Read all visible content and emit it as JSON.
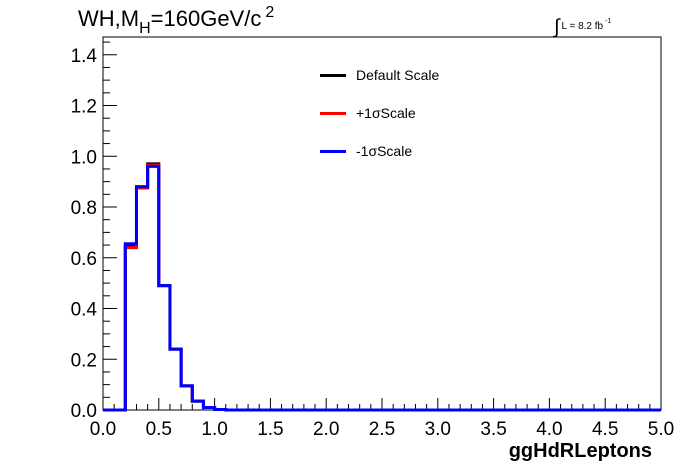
{
  "title": {
    "prefix": "WH,M",
    "subscript": "H",
    "main": "=160GeV/c",
    "superscript": "2"
  },
  "luminosity": {
    "integral": "∫",
    "text": "L = 8.2 fb",
    "superscript": "-1"
  },
  "chart_data": {
    "type": "line",
    "style": "step-histogram",
    "xlabel": "ggHdRLeptons",
    "ylabel": "",
    "xlim": [
      0.0,
      5.0
    ],
    "ylim": [
      0.0,
      1.47
    ],
    "grid": false,
    "legend_position": "top-center",
    "x_ticks": [
      "0.0",
      "0.5",
      "1.0",
      "1.5",
      "2.0",
      "2.5",
      "3.0",
      "3.5",
      "4.0",
      "4.5",
      "5.0"
    ],
    "y_ticks": [
      "0.0",
      "0.2",
      "0.4",
      "0.6",
      "0.8",
      "1.0",
      "1.2",
      "1.4"
    ],
    "bin_edges": [
      0.0,
      0.1,
      0.2,
      0.3,
      0.4,
      0.5,
      0.6,
      0.7,
      0.8,
      0.9,
      1.0,
      1.1,
      1.2,
      1.3,
      1.4,
      1.5,
      1.6,
      1.7,
      1.8,
      1.9,
      2.0,
      2.1,
      2.2,
      2.3,
      2.4,
      2.5,
      2.6,
      2.7,
      2.8,
      2.9,
      3.0,
      3.1,
      3.2,
      3.3,
      3.4,
      3.5,
      3.6,
      3.7,
      3.8,
      3.9,
      4.0,
      4.1,
      4.2,
      4.3,
      4.4,
      4.5,
      4.6,
      4.7,
      4.8,
      4.9,
      5.0
    ],
    "series": [
      {
        "name": "Default Scale",
        "color": "#000000",
        "values": [
          0,
          0,
          0.65,
          0.88,
          0.97,
          0.49,
          0.24,
          0.095,
          0.035,
          0.01,
          0.002,
          0,
          0,
          0,
          0,
          0,
          0,
          0,
          0,
          0,
          0,
          0,
          0,
          0,
          0,
          0,
          0,
          0,
          0,
          0,
          0,
          0,
          0,
          0,
          0,
          0,
          0,
          0,
          0,
          0,
          0,
          0,
          0,
          0,
          0,
          0,
          0,
          0,
          0,
          0
        ]
      },
      {
        "name": "+1σScale",
        "color": "#ff0000",
        "values": [
          0,
          0,
          0.64,
          0.875,
          0.965,
          0.49,
          0.24,
          0.095,
          0.035,
          0.01,
          0.002,
          0,
          0,
          0,
          0,
          0,
          0,
          0,
          0,
          0,
          0,
          0,
          0,
          0,
          0,
          0,
          0,
          0,
          0,
          0,
          0,
          0,
          0,
          0,
          0,
          0,
          0,
          0,
          0,
          0,
          0,
          0,
          0,
          0,
          0,
          0,
          0,
          0,
          0,
          0
        ]
      },
      {
        "name": "-1σScale",
        "color": "#0000ff",
        "values": [
          0,
          0,
          0.655,
          0.88,
          0.96,
          0.49,
          0.24,
          0.095,
          0.035,
          0.01,
          0.002,
          0,
          0,
          0,
          0,
          0,
          0,
          0,
          0,
          0,
          0,
          0,
          0,
          0,
          0,
          0,
          0,
          0,
          0,
          0,
          0,
          0,
          0,
          0,
          0,
          0,
          0,
          0,
          0,
          0,
          0,
          0,
          0,
          0,
          0,
          0,
          0,
          0,
          0,
          0
        ]
      }
    ]
  }
}
